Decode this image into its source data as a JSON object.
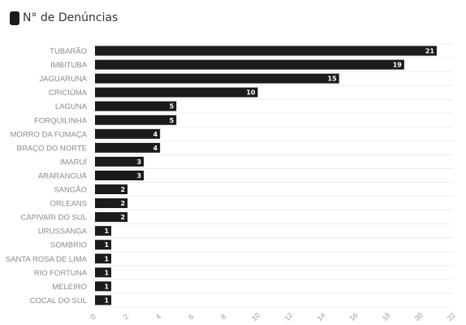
{
  "chart_data": {
    "type": "bar",
    "orientation": "horizontal",
    "series_name": "N° de Denúncias",
    "categories": [
      "TUBARÃO",
      "IMBITUBA",
      "JAGUARUNA",
      "CRICIÚMA",
      "LAGUNA",
      "FORQUILINHA",
      "MORRO DA FUMAÇA",
      "BRAÇO DO NORTE",
      "IMARUÍ",
      "ARARANGUÁ",
      "SANGÃO",
      "ORLEANS",
      "CAPIVARI DO SUL",
      "URUSSANGA",
      "SOMBRIO",
      "SANTA ROSA DE LIMA",
      "RIO FORTUNA",
      "MELEIRO",
      "COCAL DO SUL"
    ],
    "values": [
      21,
      19,
      15,
      10,
      5,
      5,
      4,
      4,
      3,
      3,
      2,
      2,
      2,
      1,
      1,
      1,
      1,
      1,
      1
    ],
    "x_ticks": [
      0,
      2,
      4,
      6,
      8,
      10,
      12,
      14,
      16,
      18,
      20,
      22
    ],
    "xlim": [
      0,
      22
    ],
    "legend_placement": "top-left",
    "grid": "horizontal lines",
    "bar_color": "#1b1b1b",
    "value_label_color": "#ffffff"
  }
}
